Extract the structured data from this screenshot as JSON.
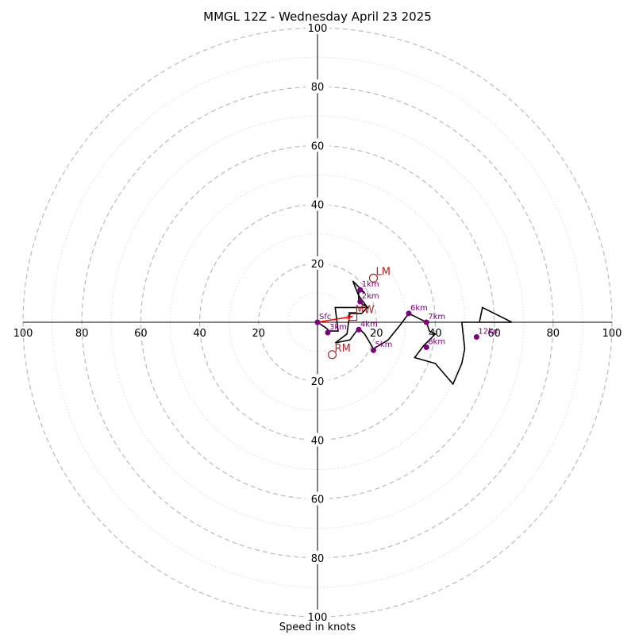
{
  "chart_data": {
    "type": "hodograph",
    "title": "MMGL 12Z - Wednesday April 23 2025",
    "xlabel": "Speed in knots",
    "ylabel": "",
    "max_speed": 100,
    "ring_major": [
      20,
      40,
      60,
      80,
      100
    ],
    "ring_minor": [
      10,
      30,
      50,
      70,
      90
    ],
    "tick_labels": [
      "20",
      "40",
      "60",
      "80",
      "100"
    ],
    "grid": true,
    "trace": [
      [
        0,
        0
      ],
      [
        3,
        -2
      ],
      [
        4,
        -3
      ],
      [
        7,
        -3
      ],
      [
        6,
        5
      ],
      [
        17,
        5
      ],
      [
        14,
        9
      ],
      [
        12,
        14
      ],
      [
        16,
        10
      ],
      [
        14,
        11
      ],
      [
        14,
        7
      ],
      [
        17,
        5
      ],
      [
        15,
        3
      ],
      [
        11,
        3
      ],
      [
        10,
        -4
      ],
      [
        6,
        -7
      ],
      [
        11,
        -6
      ],
      [
        14,
        -2
      ],
      [
        16,
        -4
      ],
      [
        19,
        -9
      ],
      [
        24,
        -6
      ],
      [
        28,
        -1
      ],
      [
        31,
        3
      ],
      [
        35,
        1
      ],
      [
        37,
        0
      ],
      [
        38,
        -3
      ],
      [
        40,
        -4
      ],
      [
        36,
        -8
      ],
      [
        33,
        -12
      ],
      [
        40,
        -14
      ],
      [
        46,
        -21
      ],
      [
        49,
        -14
      ],
      [
        50,
        -9
      ],
      [
        49,
        0
      ],
      [
        55,
        0
      ],
      [
        56,
        5
      ],
      [
        66,
        0
      ],
      [
        55,
        0
      ]
    ],
    "height_markers": [
      {
        "label": "Sfc",
        "u": 0,
        "v": 0
      },
      {
        "label": "1km",
        "u": 14.5,
        "v": 11
      },
      {
        "label": "2km",
        "u": 14.5,
        "v": 7
      },
      {
        "label": "3km",
        "u": 3.5,
        "v": -3.5
      },
      {
        "label": "4km",
        "u": 14,
        "v": -2.5
      },
      {
        "label": "5km",
        "u": 19,
        "v": -9.5
      },
      {
        "label": "6km",
        "u": 31,
        "v": 3
      },
      {
        "label": "7km",
        "u": 37,
        "v": 0
      },
      {
        "label": "8km",
        "u": 37,
        "v": -8.5
      },
      {
        "label": "12km",
        "u": 54,
        "v": -5
      }
    ],
    "storm_motion": [
      {
        "label": "LM",
        "u": 19,
        "v": 15
      },
      {
        "label": "RM",
        "u": 5,
        "v": -11
      },
      {
        "label": "MW",
        "u": 12,
        "v": 2
      }
    ],
    "shear_vector": {
      "from": [
        0,
        0
      ],
      "to": [
        12,
        2
      ]
    },
    "colors": {
      "trace": "#000000",
      "markers": "#800080",
      "storm_motion": "#b22222",
      "shear_vector": "#ff0000",
      "grid": "#bbbbbb"
    }
  }
}
